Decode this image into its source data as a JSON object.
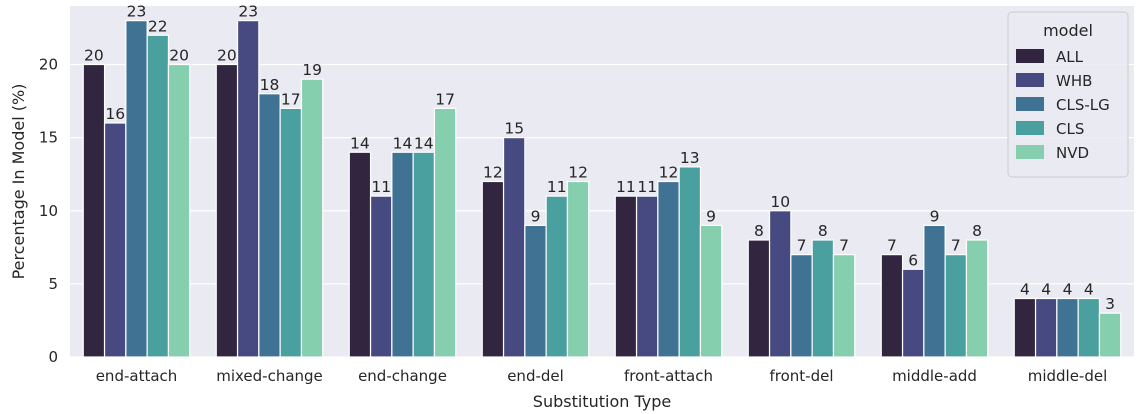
{
  "chart_data": {
    "type": "bar",
    "xlabel": "Substitution Type",
    "ylabel": "Percentage In Model (%)",
    "ylim": [
      0,
      24
    ],
    "yticks": [
      0,
      5,
      10,
      15,
      20
    ],
    "grid": true,
    "legend": {
      "title": "model",
      "placement": "top-right"
    },
    "categories": [
      "end-attach",
      "mixed-change",
      "end-change",
      "end-del",
      "front-attach",
      "front-del",
      "middle-add",
      "middle-del"
    ],
    "series": [
      {
        "name": "ALL",
        "color": "#32253f",
        "values": [
          20,
          20,
          14,
          12,
          11,
          8,
          7,
          4
        ]
      },
      {
        "name": "WHB",
        "color": "#464a80",
        "values": [
          16,
          23,
          11,
          15,
          11,
          10,
          6,
          4
        ]
      },
      {
        "name": "CLS-LG",
        "color": "#3f7293",
        "values": [
          23,
          18,
          14,
          9,
          12,
          7,
          9,
          4
        ]
      },
      {
        "name": "CLS",
        "color": "#4a9f9f",
        "values": [
          22,
          17,
          14,
          11,
          13,
          8,
          7,
          4
        ]
      },
      {
        "name": "NVD",
        "color": "#86cfae",
        "values": [
          20,
          19,
          17,
          12,
          9,
          7,
          8,
          3
        ]
      }
    ]
  },
  "colors": {
    "plot_background": "#eaeaf2",
    "grid": "#ffffff"
  }
}
